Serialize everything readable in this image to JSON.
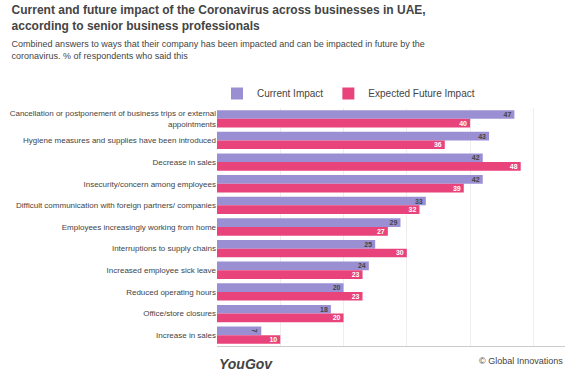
{
  "chart_data": {
    "type": "bar",
    "orientation": "horizontal",
    "title": "Current and future impact of the Coronavirus across businesses in UAE, according to senior business professionals",
    "subtitle": "Combined answers to ways that their company has been impacted and can be impacted in future by the coronavirus. % of respondents who said this",
    "categories": [
      "Cancellation or postponement of business trips or external\nappointments",
      "Hygiene measures and supplies have been introduced",
      "Decrease in sales",
      "Insecurity/concern among employees",
      "Difficult communication with foreign partners/ companies",
      "Employees increasingly working from home",
      "Interruptions to supply chains",
      "Increased employee sick leave",
      "Reduced operating hours",
      "Office/store closures",
      "Increase in sales"
    ],
    "series": [
      {
        "name": "Current Impact",
        "color": "#9B8FD4",
        "values": [
          47,
          43,
          42,
          42,
          33,
          29,
          25,
          24,
          20,
          18,
          7
        ]
      },
      {
        "name": "Expected Future Impact",
        "color": "#E8437A",
        "values": [
          40,
          36,
          48,
          39,
          32,
          27,
          30,
          23,
          23,
          20,
          10
        ]
      }
    ],
    "xlim": [
      0,
      55
    ],
    "xticks": [
      10,
      20,
      30,
      40,
      50
    ],
    "grid": true,
    "legend": "top",
    "data_labels": true,
    "tick_labels": "y",
    "annotations": [
      "YouGov",
      "© Global Innovations"
    ]
  }
}
